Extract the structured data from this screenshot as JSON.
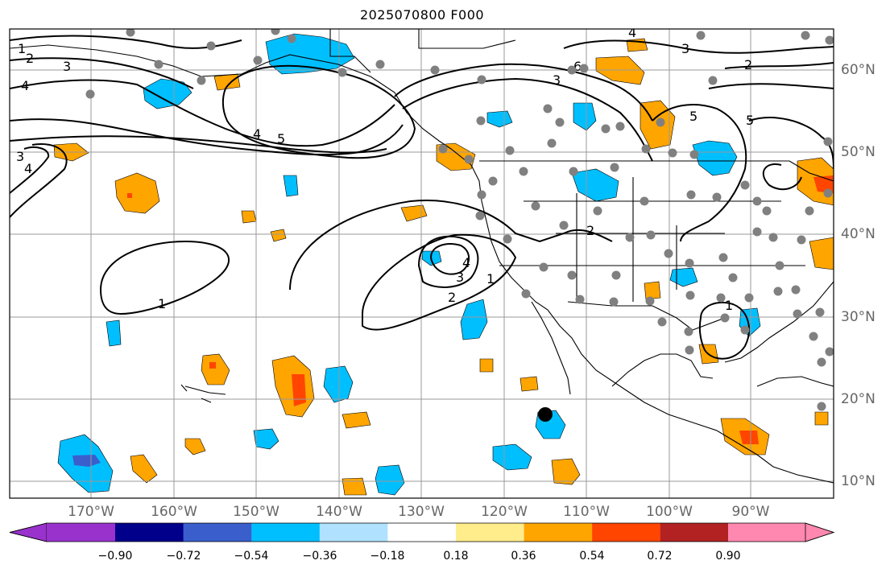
{
  "title": "2025070800 F000",
  "lon_labels": [
    "170°W",
    "160°W",
    "150°W",
    "140°W",
    "130°W",
    "120°W",
    "110°W",
    "100°W",
    "90°W"
  ],
  "lat_labels": [
    "60°N",
    "50°N",
    "40°N",
    "30°N",
    "20°N",
    "10°N"
  ],
  "colorbar": {
    "ticks": [
      "−0.90",
      "−0.72",
      "−0.54",
      "−0.36",
      "−0.18",
      "0.18",
      "0.36",
      "0.54",
      "0.72",
      "0.90"
    ],
    "colors": [
      "#9932cc",
      "#00008b",
      "#3a5fcd",
      "#00bfff",
      "#b0e2ff",
      "#ffffff",
      "#ffec8b",
      "#ffa500",
      "#ff4500",
      "#b22222",
      "#ff88b0"
    ]
  },
  "contour_labels": [
    "1",
    "2",
    "3",
    "4",
    "5",
    "6"
  ],
  "palette": {
    "grid": "#999999",
    "station": "#808080",
    "marker": "#000000",
    "blue": "#00bfff",
    "lightblue": "#b0e2ff",
    "orange": "#ffa500",
    "red": "#ff4500",
    "yellow": "#ffec8b",
    "darkblue": "#3a5fcd"
  }
}
